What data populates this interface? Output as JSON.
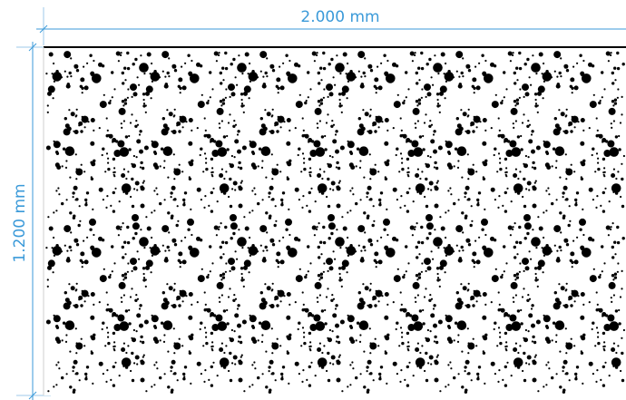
{
  "diagram": {
    "width_label": "2.000 mm",
    "height_label": "1.200 mm"
  },
  "colors": {
    "dimension": "#3b9ad9",
    "extension_line": "#9cc9ea",
    "dots": "#000000",
    "panel_edge": "#000000",
    "background": "#ffffff"
  }
}
